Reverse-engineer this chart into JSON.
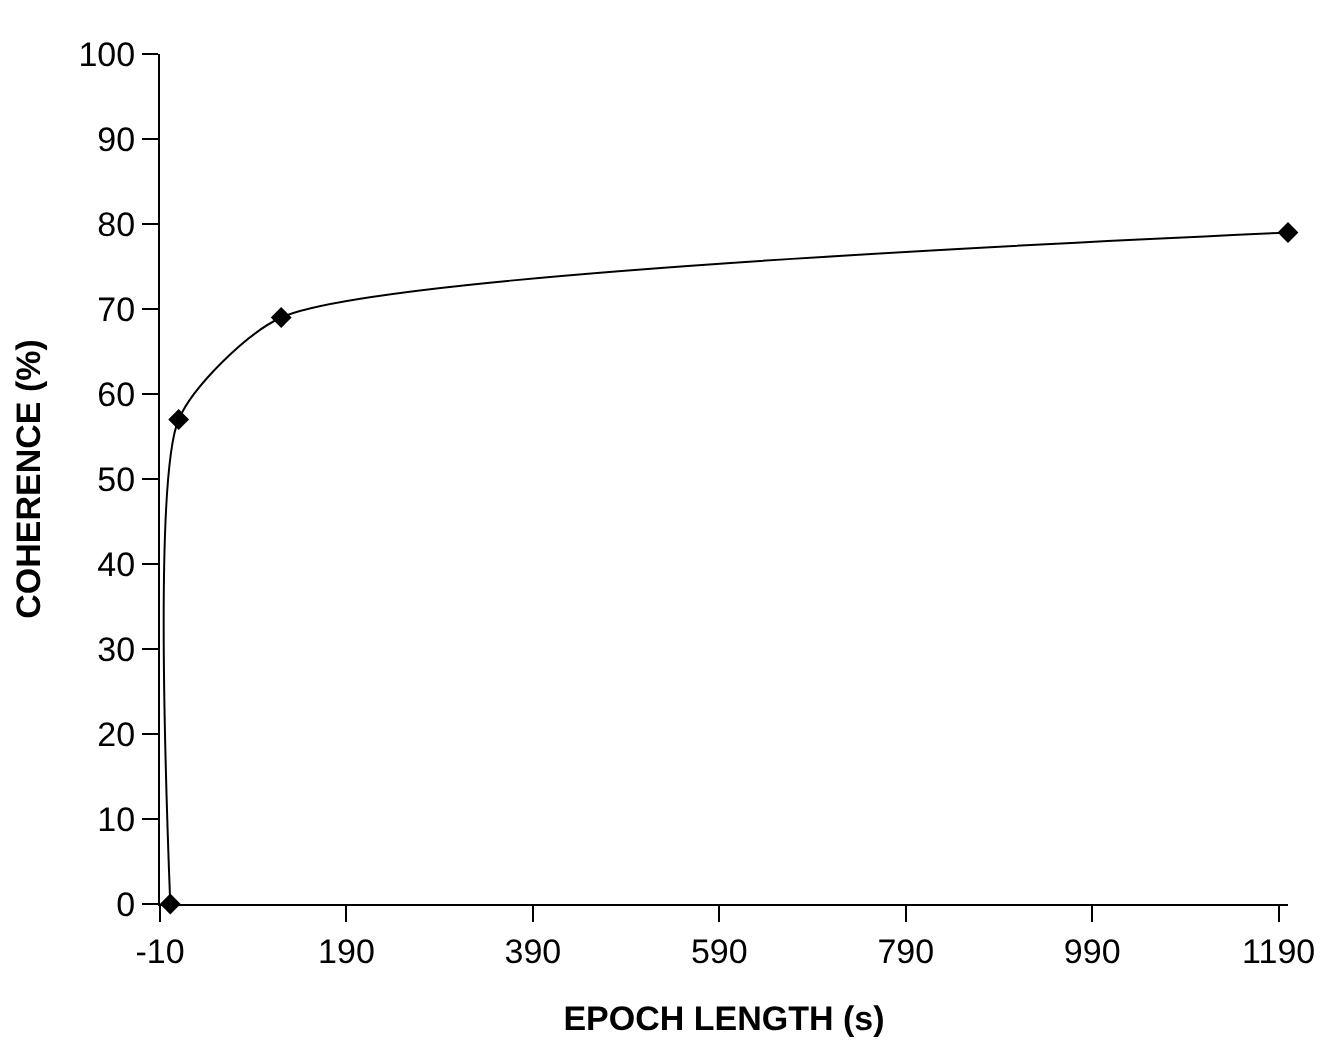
{
  "chart_data": {
    "type": "line",
    "xlabel": "EPOCH LENGTH (s)",
    "ylabel": "COHERENCE (%)",
    "x": [
      1,
      10,
      120,
      1200
    ],
    "series": [
      {
        "color": "#000000",
        "values": [
          0,
          57,
          69,
          79
        ]
      }
    ],
    "xlim": [
      -10,
      1200
    ],
    "xticks": [
      -10,
      190,
      390,
      590,
      790,
      990,
      1190
    ],
    "ylim": [
      0,
      100
    ],
    "yticks": [
      0,
      10,
      20,
      30,
      40,
      50,
      60,
      70,
      80,
      90,
      100
    ],
    "marker": "diamond",
    "line_style": "solid"
  }
}
